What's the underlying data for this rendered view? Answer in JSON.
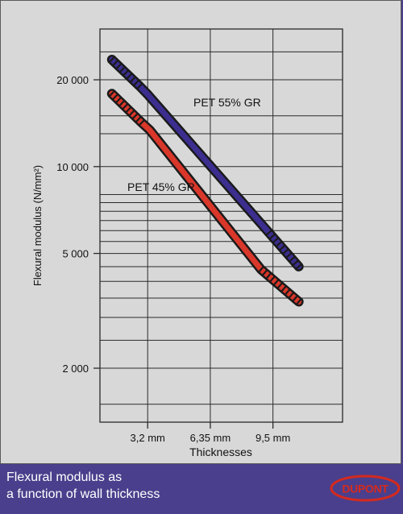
{
  "colors": {
    "panel_bg": "#d8d8d8",
    "grid": "#2a2a2a",
    "footer_bg": "#4a3f8c",
    "footer_text": "#ffffff",
    "logo_red": "#d42a1e",
    "pet55": "#3b2e8f",
    "pet45": "#d9372a",
    "outline": "#1a1a1a"
  },
  "footer": {
    "title": "Flexural modulus as\na function of wall thickness",
    "logo_text": "DUPONT"
  },
  "chart_data": {
    "type": "line",
    "xlabel": "Thicknesses",
    "ylabel": "Flexural modulus (N/mm²)",
    "y_scale": "log",
    "ylim": [
      1300,
      30000
    ],
    "xlim": [
      0.8,
      13.0
    ],
    "x_ticks": [
      {
        "value": 3.2,
        "label": "3,2 mm"
      },
      {
        "value": 6.35,
        "label": "6,35 mm"
      },
      {
        "value": 9.5,
        "label": "9,5 mm"
      }
    ],
    "x_grid": [
      3.2,
      6.35,
      9.5
    ],
    "y_ticks": [
      {
        "value": 20000,
        "label": "20 000"
      },
      {
        "value": 10000,
        "label": "10 000"
      },
      {
        "value": 5000,
        "label": "5 000"
      },
      {
        "value": 2000,
        "label": "2 000"
      }
    ],
    "y_grid": [
      1500,
      2000,
      2500,
      3000,
      3500,
      4000,
      4500,
      5000,
      5500,
      6000,
      6500,
      7000,
      7500,
      8000,
      10000,
      13000,
      15000,
      20000,
      25000
    ],
    "series": [
      {
        "name": "PET 55% GR",
        "x": [
          1.4,
          2.8,
          3.2,
          9.3,
          10.8
        ],
        "y": [
          23500,
          19000,
          17800,
          5900,
          4500
        ],
        "color": "#3b2e8f",
        "hatched_x_ranges": [
          [
            1.4,
            2.8
          ],
          [
            9.3,
            10.8
          ]
        ]
      },
      {
        "name": "PET 45% GR",
        "x": [
          1.4,
          2.9,
          3.3,
          8.9,
          10.8
        ],
        "y": [
          17900,
          14200,
          13400,
          4400,
          3400
        ],
        "color": "#d9372a",
        "hatched_x_ranges": [
          [
            1.4,
            2.9
          ],
          [
            8.9,
            10.8
          ]
        ]
      }
    ]
  }
}
